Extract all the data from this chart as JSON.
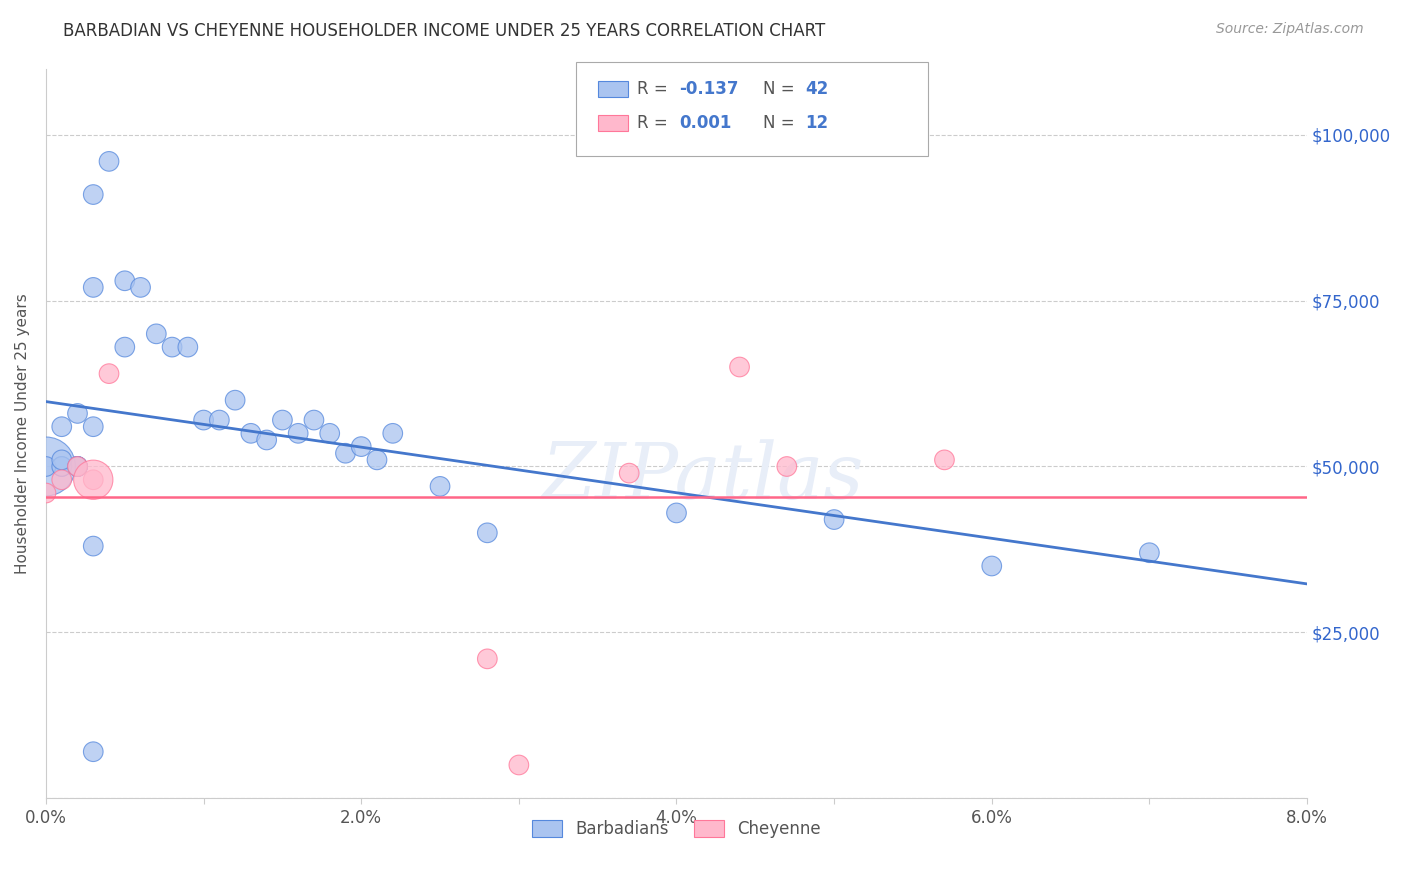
{
  "title": "BARBADIAN VS CHEYENNE HOUSEHOLDER INCOME UNDER 25 YEARS CORRELATION CHART",
  "source": "Source: ZipAtlas.com",
  "ylabel": "Householder Income Under 25 years",
  "xlim": [
    0.0,
    0.08
  ],
  "ylim": [
    0,
    110000
  ],
  "yticks": [
    0,
    25000,
    50000,
    75000,
    100000
  ],
  "xtick_labels": [
    "0.0%",
    "",
    "2.0%",
    "",
    "4.0%",
    "",
    "6.0%",
    "",
    "8.0%"
  ],
  "legend_barbadian": "Barbadians",
  "legend_cheyenne": "Cheyenne",
  "R_barbadian": "-0.137",
  "N_barbadian": "42",
  "R_cheyenne": "0.001",
  "N_cheyenne": "12",
  "blue_fill": "#aac4f0",
  "blue_edge": "#5588dd",
  "pink_fill": "#ffb8cc",
  "pink_edge": "#ff7799",
  "line_blue": "#4477cc",
  "line_pink": "#ff6688",
  "watermark": "ZIPatlas",
  "background_color": "#ffffff",
  "grid_color": "#cccccc",
  "barbadian_x": [
    0.001,
    0.002,
    0.001,
    0.001,
    0.002,
    0.002,
    0.003,
    0.003,
    0.003,
    0.004,
    0.005,
    0.006,
    0.007,
    0.008,
    0.009,
    0.01,
    0.011,
    0.012,
    0.013,
    0.014,
    0.015,
    0.016,
    0.017,
    0.018,
    0.019,
    0.02,
    0.021,
    0.022,
    0.0,
    0.0,
    0.001,
    0.001,
    0.002,
    0.003,
    0.025,
    0.028,
    0.04,
    0.05,
    0.06,
    0.07,
    0.003,
    0.005
  ],
  "barbadian_y": [
    56000,
    58000,
    50000,
    50000,
    50000,
    50000,
    56000,
    91000,
    77000,
    96000,
    78000,
    77000,
    70000,
    68000,
    68000,
    57000,
    57000,
    60000,
    55000,
    54000,
    57000,
    55000,
    57000,
    55000,
    52000,
    53000,
    51000,
    55000,
    50000,
    50000,
    50000,
    51000,
    50000,
    38000,
    47000,
    40000,
    43000,
    42000,
    35000,
    37000,
    7000,
    68000
  ],
  "barbadian_sizes": [
    200,
    200,
    200,
    200,
    200,
    200,
    200,
    200,
    200,
    200,
    200,
    200,
    200,
    200,
    200,
    200,
    200,
    200,
    200,
    200,
    200,
    200,
    200,
    200,
    200,
    200,
    200,
    200,
    200,
    200,
    200,
    200,
    200,
    200,
    200,
    200,
    200,
    200,
    200,
    200,
    200,
    200
  ],
  "barbadian_large_idx": 28,
  "barbadian_large_size": 1800,
  "cheyenne_x": [
    0.0,
    0.001,
    0.002,
    0.003,
    0.004,
    0.028,
    0.037,
    0.047,
    0.057,
    0.003,
    0.03,
    0.044
  ],
  "cheyenne_y": [
    46000,
    48000,
    50000,
    48000,
    64000,
    21000,
    49000,
    50000,
    51000,
    48000,
    5000,
    65000
  ],
  "cheyenne_sizes": [
    200,
    200,
    200,
    200,
    200,
    200,
    200,
    200,
    200,
    200,
    200,
    200
  ],
  "cheyenne_large_idx": 9,
  "cheyenne_large_size": 800
}
